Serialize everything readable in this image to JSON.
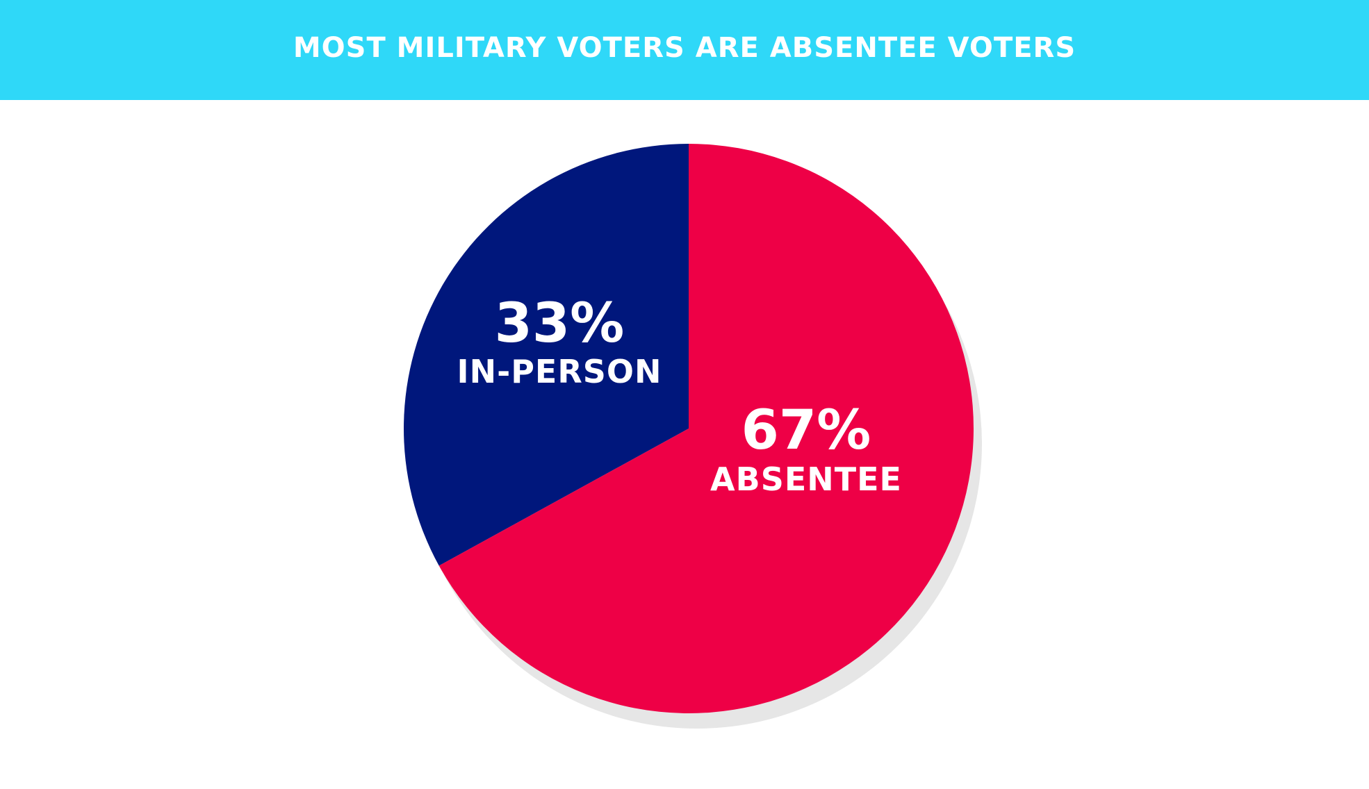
{
  "header": {
    "title": "MOST MILITARY VOTERS ARE ABSENTEE VOTERS"
  },
  "colors": {
    "header_bg": "#2fd8f8",
    "shadow": "#e6e6e6"
  },
  "chart_data": {
    "type": "pie",
    "title": "MOST MILITARY VOTERS ARE ABSENTEE VOTERS",
    "legend": "none",
    "slices": [
      {
        "label": "IN-PERSON",
        "value": 33,
        "value_label": "33%",
        "color": "#00177c"
      },
      {
        "label": "ABSENTEE",
        "value": 67,
        "value_label": "67%",
        "color": "#ee0046"
      }
    ]
  }
}
